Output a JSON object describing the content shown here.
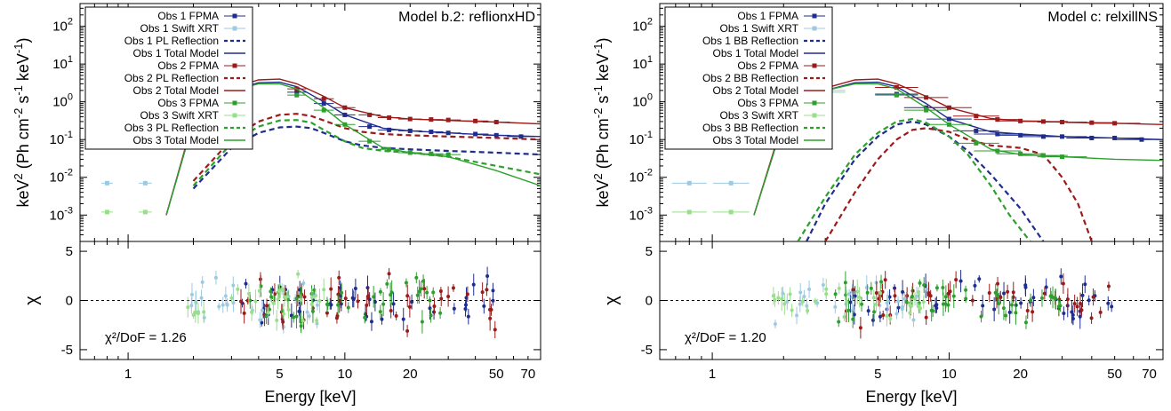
{
  "figure": {
    "xlabel": "Energy [keV]",
    "ylabel_main": "keV",
    "ylabel_sup": "2",
    "ylabel_rest": " (Ph cm",
    "ylabel_sup2": "-2",
    "ylabel_s": " s",
    "ylabel_sup3": "-1",
    "ylabel_kev": " keV",
    "ylabel_sup4": "-1",
    "ylabel_close": ")",
    "resid_ylabel": "χ"
  },
  "chart_data": [
    {
      "type": "line",
      "title": "Model b.2: reflionxHD",
      "xscale": "log",
      "yscale": "log",
      "xlim": [
        0.6,
        80
      ],
      "ylim": [
        0.0002,
        400
      ],
      "x_ticks": [
        1,
        5,
        10,
        20,
        50,
        70
      ],
      "y_ticks": [
        "10^-3",
        "10^-2",
        "10^-1",
        "10^0",
        "10^1",
        "10^2"
      ],
      "legend_position": "top-left",
      "chi2_label": "χ²/DoF = 1.26",
      "resid_ylim": [
        -6,
        6
      ],
      "resid_ticks": [
        5,
        0,
        -5
      ],
      "series": [
        {
          "name": "Obs 1 FPMA",
          "color": "#1f2d8f",
          "style": "points",
          "x": [
            6,
            8,
            10,
            13,
            16,
            20,
            25,
            30,
            40,
            50,
            65
          ],
          "y": [
            1.8,
            0.9,
            0.45,
            0.22,
            0.18,
            0.17,
            0.16,
            0.15,
            0.14,
            0.13,
            0.12
          ]
        },
        {
          "name": "Obs 1 Swift XRT",
          "color": "#9ecae1",
          "style": "points",
          "x": [
            0.8,
            1.2,
            2.0,
            2.5,
            3.0
          ],
          "y": [
            0.007,
            0.007,
            0.5,
            1.2,
            2.0
          ]
        },
        {
          "name": "Obs 1 PL Reflection",
          "color": "#1f2d8f",
          "style": "dashed",
          "x": [
            2,
            3,
            4,
            5,
            6,
            7,
            8,
            10,
            12,
            15,
            20,
            30,
            50,
            80
          ],
          "y": [
            0.005,
            0.06,
            0.15,
            0.21,
            0.22,
            0.2,
            0.15,
            0.09,
            0.07,
            0.06,
            0.055,
            0.05,
            0.045,
            0.04
          ]
        },
        {
          "name": "Obs 1 Total Model",
          "color": "#1f2d8f",
          "style": "solid",
          "x": [
            1.5,
            2,
            3,
            4,
            5,
            6,
            8,
            10,
            15,
            20,
            30,
            50,
            80
          ],
          "y": [
            0.001,
            0.3,
            2.0,
            3.2,
            3.3,
            2.5,
            1.0,
            0.45,
            0.2,
            0.17,
            0.15,
            0.13,
            0.12
          ]
        },
        {
          "name": "Obs 2 FPMA",
          "color": "#9b1b1b",
          "style": "points",
          "x": [
            6,
            8,
            10,
            13,
            16,
            20,
            25,
            30,
            40,
            50
          ],
          "y": [
            2.2,
            1.2,
            0.7,
            0.45,
            0.38,
            0.35,
            0.34,
            0.33,
            0.31,
            0.29
          ]
        },
        {
          "name": "Obs 2 PL Reflection",
          "color": "#9b1b1b",
          "style": "dashed",
          "x": [
            2,
            3,
            4,
            5,
            6,
            7,
            8,
            10,
            12,
            15,
            20,
            30,
            50,
            80
          ],
          "y": [
            0.008,
            0.1,
            0.3,
            0.45,
            0.48,
            0.42,
            0.32,
            0.2,
            0.16,
            0.14,
            0.13,
            0.12,
            0.11,
            0.1
          ]
        },
        {
          "name": "Obs 2 Total Model",
          "color": "#9b1b1b",
          "style": "solid",
          "x": [
            1.5,
            2,
            3,
            4,
            5,
            6,
            8,
            10,
            15,
            20,
            30,
            50,
            80
          ],
          "y": [
            0.001,
            0.35,
            2.3,
            3.8,
            4.0,
            3.0,
            1.4,
            0.7,
            0.4,
            0.35,
            0.32,
            0.29,
            0.26
          ]
        },
        {
          "name": "Obs 3 FPMA",
          "color": "#2ca02c",
          "style": "points",
          "x": [
            6,
            8,
            10,
            13,
            16,
            20,
            25,
            30
          ],
          "y": [
            1.5,
            0.6,
            0.25,
            0.09,
            0.055,
            0.045,
            0.042,
            0.04
          ]
        },
        {
          "name": "Obs 3 Swift XRT",
          "color": "#98df8a",
          "style": "points",
          "x": [
            0.8,
            1.2,
            2.0,
            2.5,
            3.0
          ],
          "y": [
            0.0012,
            0.0012,
            0.4,
            1.0,
            1.8
          ]
        },
        {
          "name": "Obs 3 PL Reflection",
          "color": "#2ca02c",
          "style": "dashed",
          "x": [
            2,
            3,
            4,
            5,
            6,
            7,
            8,
            10,
            12,
            15,
            20,
            30,
            50,
            80
          ],
          "y": [
            0.006,
            0.08,
            0.22,
            0.32,
            0.33,
            0.28,
            0.18,
            0.09,
            0.06,
            0.05,
            0.045,
            0.035,
            0.02,
            0.012
          ]
        },
        {
          "name": "Obs 3 Total Model",
          "color": "#2ca02c",
          "style": "solid",
          "x": [
            1.5,
            2,
            3,
            4,
            5,
            6,
            8,
            10,
            15,
            20,
            30,
            50,
            80
          ],
          "y": [
            0.001,
            0.3,
            2.0,
            3.0,
            3.0,
            2.2,
            0.7,
            0.25,
            0.06,
            0.045,
            0.035,
            0.015,
            0.006
          ]
        }
      ]
    },
    {
      "type": "line",
      "title": "Model c: relxillNS",
      "xscale": "log",
      "yscale": "log",
      "xlim": [
        0.6,
        80
      ],
      "ylim": [
        0.0002,
        400
      ],
      "x_ticks": [
        1,
        5,
        10,
        20,
        50,
        70
      ],
      "y_ticks": [
        "10^-3",
        "10^-2",
        "10^-1",
        "10^0",
        "10^1",
        "10^2"
      ],
      "legend_position": "top-left",
      "chi2_label": "χ²/DoF = 1.20",
      "resid_ylim": [
        -6,
        6
      ],
      "resid_ticks": [
        5,
        0,
        -5
      ],
      "series": [
        {
          "name": "Obs 1 FPMA",
          "color": "#1f2d8f",
          "style": "points",
          "x": [
            6,
            8,
            10,
            13,
            16,
            20,
            25,
            30,
            40,
            50,
            65
          ],
          "y": [
            1.6,
            0.7,
            0.35,
            0.17,
            0.14,
            0.13,
            0.12,
            0.12,
            0.11,
            0.11,
            0.1
          ]
        },
        {
          "name": "Obs 1 Swift XRT",
          "color": "#9ecae1",
          "style": "points",
          "x": [
            0.8,
            1.2,
            2.0,
            2.5,
            3.0
          ],
          "y": [
            0.007,
            0.007,
            0.5,
            1.2,
            2.0
          ]
        },
        {
          "name": "Obs 1 BB Reflection",
          "color": "#1f2d8f",
          "style": "dashed",
          "x": [
            2.5,
            3,
            4,
            5,
            6,
            7,
            8,
            10,
            12,
            15,
            20,
            25
          ],
          "y": [
            0.0002,
            0.002,
            0.03,
            0.12,
            0.25,
            0.3,
            0.25,
            0.12,
            0.05,
            0.012,
            0.0015,
            0.0002
          ]
        },
        {
          "name": "Obs 1 Total Model",
          "color": "#1f2d8f",
          "style": "solid",
          "x": [
            1.5,
            2,
            3,
            4,
            5,
            6,
            8,
            10,
            15,
            20,
            30,
            50,
            80
          ],
          "y": [
            0.001,
            0.3,
            2.0,
            3.2,
            3.3,
            2.5,
            0.9,
            0.35,
            0.16,
            0.14,
            0.12,
            0.11,
            0.1
          ]
        },
        {
          "name": "Obs 2 FPMA",
          "color": "#9b1b1b",
          "style": "points",
          "x": [
            6,
            8,
            10,
            13,
            16,
            20,
            25,
            30,
            40,
            50
          ],
          "y": [
            2.4,
            1.3,
            0.7,
            0.42,
            0.34,
            0.31,
            0.3,
            0.29,
            0.28,
            0.27
          ]
        },
        {
          "name": "Obs 2 BB Reflection",
          "color": "#9b1b1b",
          "style": "dashed",
          "x": [
            3,
            4,
            5,
            6,
            7,
            8,
            10,
            12,
            15,
            20,
            25,
            30,
            35,
            40
          ],
          "y": [
            0.0002,
            0.004,
            0.03,
            0.1,
            0.18,
            0.2,
            0.16,
            0.1,
            0.07,
            0.06,
            0.04,
            0.01,
            0.002,
            0.0002
          ]
        },
        {
          "name": "Obs 2 Total Model",
          "color": "#9b1b1b",
          "style": "solid",
          "x": [
            1.5,
            2,
            3,
            4,
            5,
            6,
            8,
            10,
            15,
            20,
            30,
            50,
            80
          ],
          "y": [
            0.001,
            0.35,
            2.3,
            3.8,
            4.0,
            3.0,
            1.4,
            0.7,
            0.36,
            0.31,
            0.29,
            0.27,
            0.25
          ]
        },
        {
          "name": "Obs 3 FPMA",
          "color": "#2ca02c",
          "style": "points",
          "x": [
            6,
            8,
            10,
            13,
            16,
            20,
            25,
            30
          ],
          "y": [
            1.5,
            0.6,
            0.25,
            0.08,
            0.05,
            0.042,
            0.038,
            0.035
          ]
        },
        {
          "name": "Obs 3 Swift XRT",
          "color": "#98df8a",
          "style": "points",
          "x": [
            0.8,
            1.2,
            2.0,
            2.5,
            3.0
          ],
          "y": [
            0.0012,
            0.0012,
            0.4,
            1.0,
            1.8
          ]
        },
        {
          "name": "Obs 3 BB Reflection",
          "color": "#2ca02c",
          "style": "dashed",
          "x": [
            2.3,
            3,
            4,
            5,
            6,
            7,
            8,
            10,
            12,
            15,
            18,
            22
          ],
          "y": [
            0.0002,
            0.003,
            0.04,
            0.15,
            0.3,
            0.35,
            0.28,
            0.12,
            0.04,
            0.006,
            0.001,
            0.0002
          ]
        },
        {
          "name": "Obs 3 Total Model",
          "color": "#2ca02c",
          "style": "solid",
          "x": [
            1.5,
            2,
            3,
            4,
            5,
            6,
            8,
            10,
            15,
            20,
            30,
            50,
            80
          ],
          "y": [
            0.001,
            0.3,
            2.0,
            3.0,
            3.0,
            2.2,
            0.7,
            0.25,
            0.055,
            0.04,
            0.035,
            0.03,
            0.028
          ]
        }
      ]
    }
  ]
}
